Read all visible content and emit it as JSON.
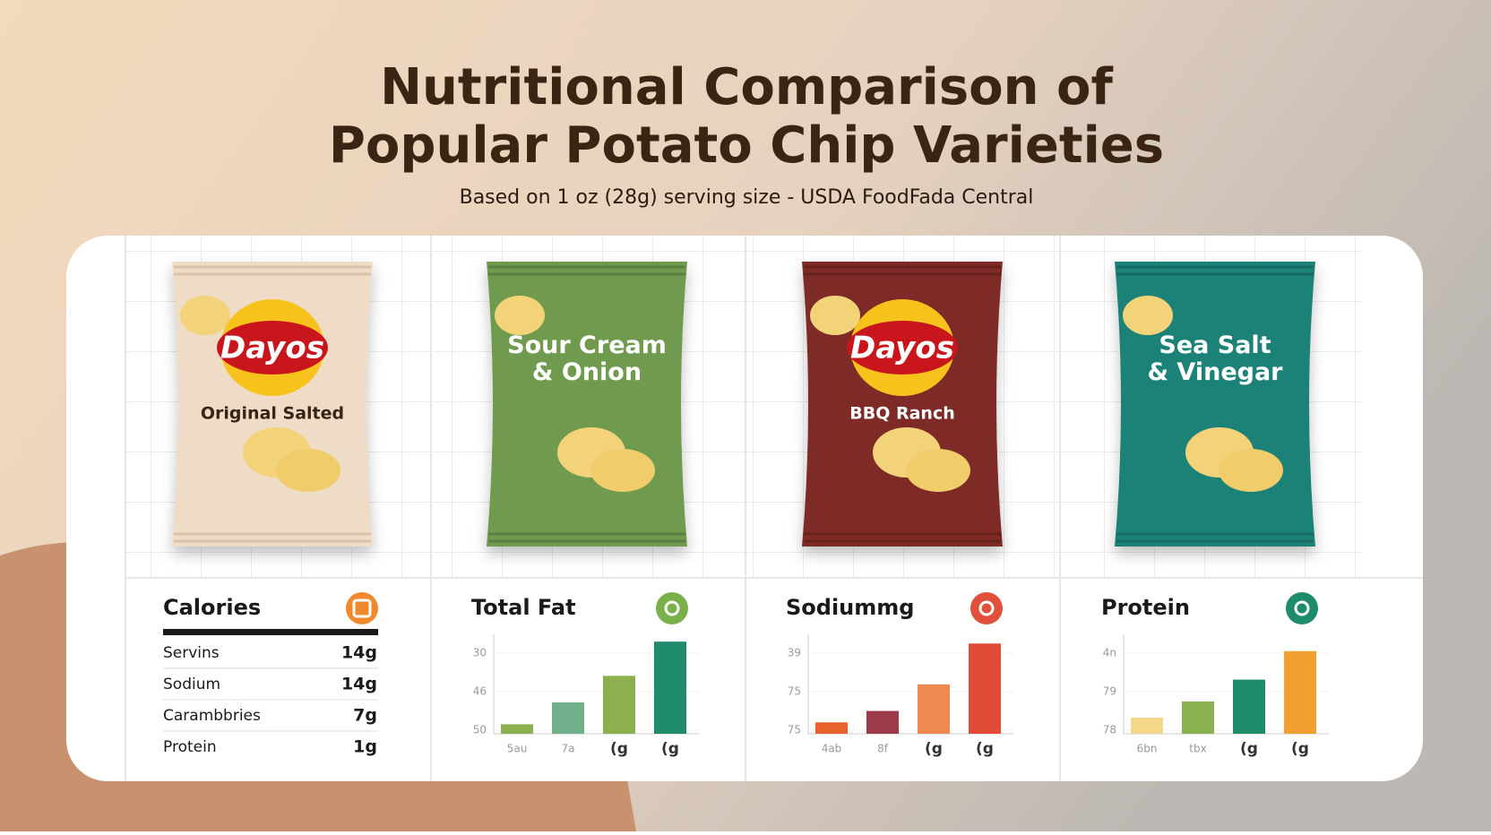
{
  "header": {
    "title": [
      "Nutritional Comparison of",
      "Popular Potato Chip Varieties"
    ],
    "subtitle": "Based on 1 oz (28g) serving size - USDA FoodFada Central"
  },
  "products": [
    {
      "brand": "Dayos",
      "name": "Original Salted",
      "color": "#efdcc6"
    },
    {
      "name": "Sour Cream & Onion",
      "color": "#6f9a4e"
    },
    {
      "brand": "Dayos",
      "name": "BBQ Ranch",
      "color": "#7e2a26"
    },
    {
      "name": "Sea Salt & Vinegar",
      "color": "#1f8277"
    }
  ],
  "calories": {
    "title": "Calories",
    "color": "#f08a2c",
    "rows": [
      [
        "Servins",
        "14g"
      ],
      [
        "Sodium",
        "14g"
      ],
      [
        "Carambbries",
        "7g"
      ],
      [
        "Protein",
        "1g"
      ]
    ]
  },
  "charts": [
    {
      "title": "Total Fat",
      "icon_color": "#7ab04a",
      "yticks": [
        "30",
        "46",
        "50"
      ],
      "categories": [
        "5au",
        "7a",
        "(g",
        "(g"
      ],
      "values": [
        10,
        33,
        61,
        97
      ],
      "ylim": [
        0,
        100
      ],
      "colors": [
        "#8bb04f",
        "#6fb08a",
        "#8db04f",
        "#1e8c6c"
      ]
    },
    {
      "title": "Sodiummg",
      "icon_color": "#e0503a",
      "yticks": [
        "39",
        "75",
        "75"
      ],
      "categories": [
        "4ab",
        "8f",
        "(g",
        "(g"
      ],
      "values": [
        12,
        24,
        52,
        95
      ],
      "ylim": [
        0,
        100
      ],
      "colors": [
        "#e8632c",
        "#9c3a4a",
        "#ec8a50",
        "#e04a36"
      ]
    },
    {
      "title": "Protein",
      "icon_color": "#1e8c6c",
      "yticks": [
        "4n",
        "79",
        "78"
      ],
      "categories": [
        "6bn",
        "tbx",
        "(g",
        "(g"
      ],
      "values": [
        17,
        34,
        57,
        87
      ],
      "ylim": [
        0,
        100
      ],
      "colors": [
        "#f5d78a",
        "#8ab04f",
        "#1e8c6c",
        "#f0a030"
      ]
    }
  ]
}
